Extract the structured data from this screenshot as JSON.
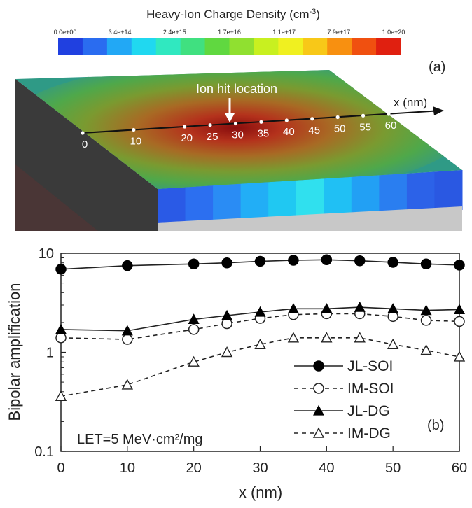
{
  "figure": {
    "colorbar": {
      "title": "Heavy-Ion Charge Density (cm",
      "title_sup": "-3",
      "title_end": ")",
      "ticks": [
        "0.0e+00",
        "3.4e+14",
        "2.4e+15",
        "1.7e+16",
        "1.1e+17",
        "7.9e+17",
        "1.0e+20"
      ],
      "colors": [
        "#2040e0",
        "#2a6cf0",
        "#22a8f5",
        "#20d8f0",
        "#30e8c0",
        "#40e080",
        "#60d840",
        "#90e030",
        "#c8f020",
        "#f0f020",
        "#f8c818",
        "#f89010",
        "#f05010",
        "#e02010"
      ]
    },
    "panel_a": {
      "label": "(a)",
      "hit_label": "Ion hit location",
      "axis_label": "x (nm)",
      "points": [
        "0",
        "10",
        "20",
        "25",
        "30",
        "35",
        "40",
        "45",
        "50",
        "55",
        "60"
      ]
    }
  },
  "chart_data": {
    "type": "line",
    "panel_label": "(b)",
    "xlabel": "x (nm)",
    "ylabel": "Bipolar amplification",
    "ylog": true,
    "xlim": [
      0,
      60
    ],
    "ylim": [
      0.1,
      10
    ],
    "xticks": [
      "0",
      "10",
      "20",
      "30",
      "40",
      "50",
      "60"
    ],
    "yticks": [
      "0.1",
      "1",
      "10"
    ],
    "annotation": "LET=5 MeV·cm²/mg",
    "series": [
      {
        "name": "JL-SOI",
        "marker": "circle-filled",
        "dash": false,
        "x": [
          0,
          10,
          20,
          25,
          30,
          35,
          40,
          45,
          50,
          55,
          60
        ],
        "y": [
          6.9,
          7.5,
          7.8,
          8.0,
          8.3,
          8.5,
          8.6,
          8.4,
          8.1,
          7.8,
          7.6
        ]
      },
      {
        "name": "IM-SOI",
        "marker": "circle-open",
        "dash": true,
        "x": [
          0,
          10,
          20,
          25,
          30,
          35,
          40,
          45,
          50,
          55,
          60
        ],
        "y": [
          1.4,
          1.35,
          1.7,
          1.95,
          2.2,
          2.4,
          2.45,
          2.45,
          2.3,
          2.1,
          2.05
        ]
      },
      {
        "name": "JL-DG",
        "marker": "triangle-filled",
        "dash": false,
        "x": [
          0,
          10,
          20,
          25,
          30,
          35,
          40,
          45,
          50,
          55,
          60
        ],
        "y": [
          1.7,
          1.65,
          2.15,
          2.35,
          2.55,
          2.75,
          2.75,
          2.85,
          2.75,
          2.65,
          2.7
        ]
      },
      {
        "name": "IM-DG",
        "marker": "triangle-open",
        "dash": true,
        "x": [
          0,
          10,
          20,
          25,
          30,
          35,
          40,
          45,
          50,
          55,
          60
        ],
        "y": [
          0.36,
          0.47,
          0.8,
          1.0,
          1.2,
          1.4,
          1.4,
          1.4,
          1.2,
          1.05,
          0.9
        ]
      }
    ]
  }
}
